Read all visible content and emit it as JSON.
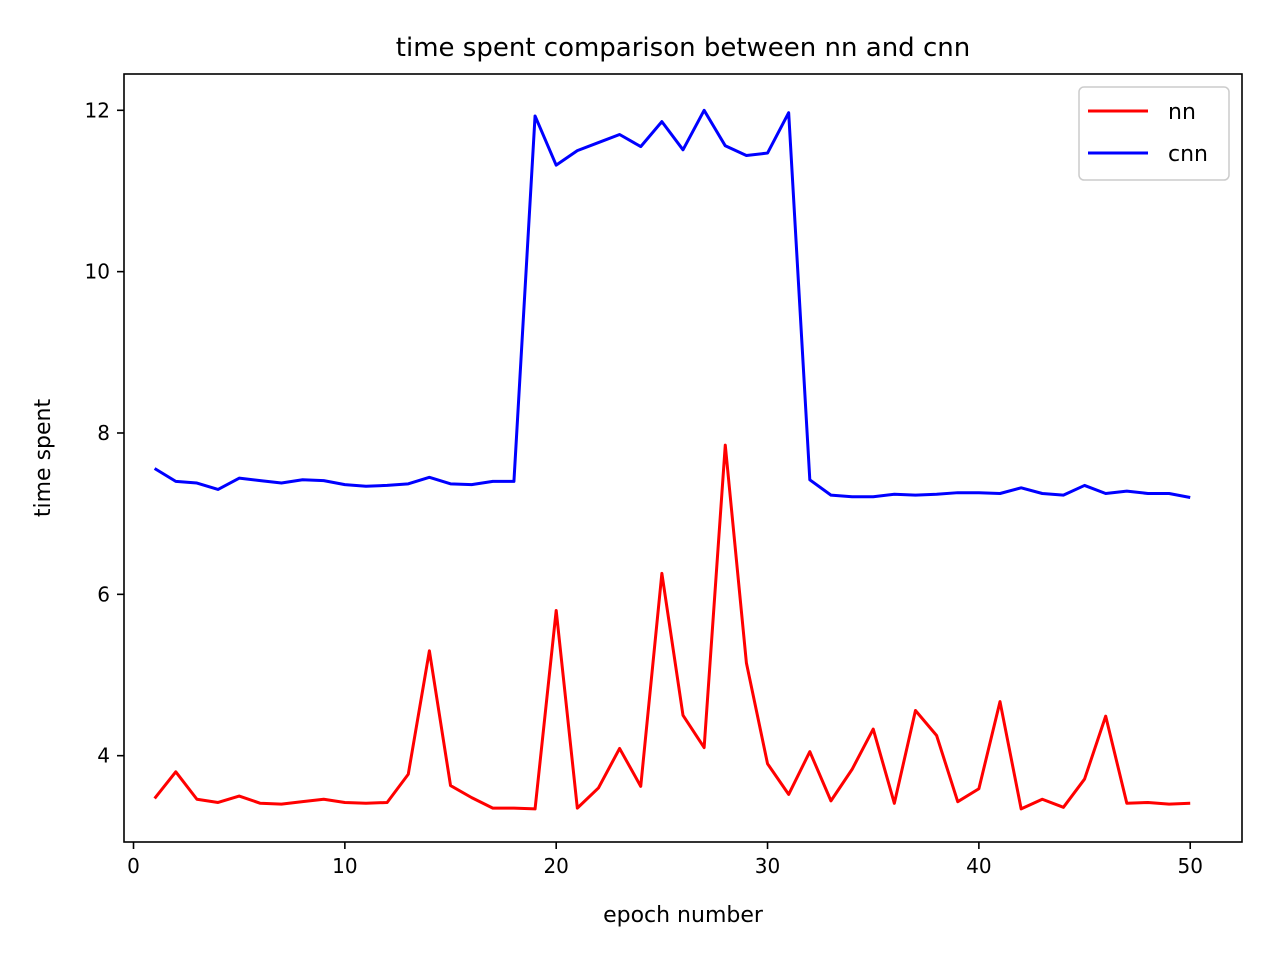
{
  "chart_data": {
    "type": "line",
    "title": "time spent comparison between nn and cnn",
    "xlabel": "epoch number",
    "ylabel": "time spent",
    "xlim": [
      -0.45,
      52.45
    ],
    "ylim": [
      2.93,
      12.45
    ],
    "xticks": [
      0,
      10,
      20,
      30,
      40,
      50
    ],
    "yticks": [
      4,
      6,
      8,
      10,
      12
    ],
    "grid": false,
    "legend_position": "top-right",
    "x": [
      1,
      2,
      3,
      4,
      5,
      6,
      7,
      8,
      9,
      10,
      11,
      12,
      13,
      14,
      15,
      16,
      17,
      18,
      19,
      20,
      21,
      22,
      23,
      24,
      25,
      26,
      27,
      28,
      29,
      30,
      31,
      32,
      33,
      34,
      35,
      36,
      37,
      38,
      39,
      40,
      41,
      42,
      43,
      44,
      45,
      46,
      47,
      48,
      49,
      50
    ],
    "series": [
      {
        "name": "nn",
        "color": "#ff0000",
        "values": [
          3.47,
          3.8,
          3.46,
          3.42,
          3.5,
          3.41,
          3.4,
          3.43,
          3.46,
          3.42,
          3.41,
          3.42,
          3.77,
          5.3,
          3.63,
          3.48,
          3.35,
          3.35,
          3.34,
          5.8,
          3.35,
          3.6,
          4.09,
          3.62,
          6.26,
          4.5,
          4.1,
          7.85,
          5.15,
          3.9,
          3.52,
          4.05,
          3.44,
          3.83,
          4.33,
          3.41,
          4.56,
          4.25,
          3.43,
          3.59,
          4.67,
          3.34,
          3.46,
          3.36,
          3.71,
          4.49,
          3.41,
          3.42,
          3.4,
          3.41
        ]
      },
      {
        "name": "cnn",
        "color": "#0000ff",
        "values": [
          7.56,
          7.4,
          7.38,
          7.3,
          7.44,
          7.41,
          7.38,
          7.42,
          7.41,
          7.36,
          7.34,
          7.35,
          7.37,
          7.45,
          7.37,
          7.36,
          7.4,
          7.4,
          11.93,
          11.32,
          11.5,
          11.6,
          11.7,
          11.55,
          11.86,
          11.51,
          12.0,
          11.56,
          11.44,
          11.47,
          11.97,
          7.42,
          7.23,
          7.21,
          7.21,
          7.24,
          7.23,
          7.24,
          7.26,
          7.26,
          7.25,
          7.32,
          7.25,
          7.23,
          7.35,
          7.25,
          7.28,
          7.25,
          7.25,
          7.2
        ]
      }
    ]
  }
}
